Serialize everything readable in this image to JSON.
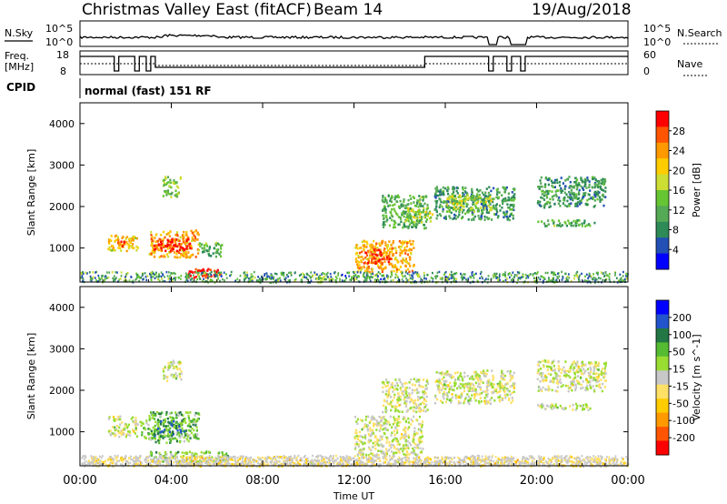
{
  "header": {
    "title": "Christmas Valley East (fitACF)",
    "beam": "Beam 14",
    "date": "19/Aug/2018"
  },
  "status_panel": {
    "nsky_label": "N.Sky",
    "nsearch_label": "N.Search",
    "nsky_ticks": [
      "10^5",
      "10^0"
    ],
    "nsearch_ticks": [
      "10^5",
      "10^0"
    ],
    "freq_label": [
      "Freq.",
      "[MHz]"
    ],
    "freq_ticks": [
      "18",
      "8"
    ],
    "nave_label": "Nave",
    "nave_ticks": [
      "60",
      "0"
    ],
    "cpid_label": "CPID",
    "cpid_value": "normal (fast) 151 RF"
  },
  "chart_data": [
    {
      "type": "heatmap",
      "title": "",
      "xlabel": "",
      "ylabel": "Slant Range [km]",
      "x_ticks": [
        "00:00",
        "04:00",
        "08:00",
        "12:00",
        "16:00",
        "20:00",
        "00:00"
      ],
      "xlim_hours": [
        0,
        24
      ],
      "y_ticks": [
        1000,
        2000,
        3000,
        4000
      ],
      "ylim_km": [
        180,
        4500
      ],
      "colorbar_label": "Power [dB]",
      "colorbar_ticks": [
        "28",
        "24",
        "20",
        "16",
        "12",
        "8",
        "4"
      ],
      "colors": [
        "#0000ff",
        "#2250b4",
        "#2e8b57",
        "#55aa55",
        "#66c533",
        "#ccdd33",
        "#ffcc00",
        "#ff9900",
        "#ff5500",
        "#ff0000"
      ],
      "regions": [
        {
          "t0": 1.2,
          "t1": 2.5,
          "r0": 950,
          "r1": 1350,
          "value": 20
        },
        {
          "t0": 1.6,
          "t1": 2.1,
          "r0": 1050,
          "r1": 1250,
          "value": 26
        },
        {
          "t0": 3.0,
          "t1": 5.2,
          "r0": 800,
          "r1": 1450,
          "value": 22
        },
        {
          "t0": 3.2,
          "t1": 4.8,
          "r0": 950,
          "r1": 1250,
          "value": 28
        },
        {
          "t0": 5.2,
          "t1": 6.2,
          "r0": 820,
          "r1": 1150,
          "value": 12
        },
        {
          "t0": 3.6,
          "t1": 4.4,
          "r0": 2250,
          "r1": 2750,
          "value": 14
        },
        {
          "t0": 4.5,
          "t1": 6.2,
          "r0": 300,
          "r1": 520,
          "value": 29
        },
        {
          "t0": 12.0,
          "t1": 14.6,
          "r0": 450,
          "r1": 1200,
          "value": 22
        },
        {
          "t0": 12.4,
          "t1": 13.6,
          "r0": 650,
          "r1": 1000,
          "value": 28
        },
        {
          "t0": 13.2,
          "t1": 15.2,
          "r0": 1500,
          "r1": 2300,
          "value": 12
        },
        {
          "t0": 14.2,
          "t1": 15.4,
          "r0": 1650,
          "r1": 2000,
          "value": 16
        },
        {
          "t0": 15.5,
          "t1": 19.0,
          "r0": 1700,
          "r1": 2500,
          "value": 10
        },
        {
          "t0": 16.0,
          "t1": 18.0,
          "r0": 1900,
          "r1": 2300,
          "value": 16
        },
        {
          "t0": 20.0,
          "t1": 23.0,
          "r0": 2000,
          "r1": 2750,
          "value": 10
        },
        {
          "t0": 20.0,
          "t1": 22.5,
          "r0": 1550,
          "r1": 1700,
          "value": 12
        }
      ]
    },
    {
      "type": "heatmap",
      "title": "",
      "xlabel": "Time UT",
      "ylabel": "Slant Range [km]",
      "x_ticks": [
        "00:00",
        "04:00",
        "08:00",
        "12:00",
        "16:00",
        "20:00",
        "00:00"
      ],
      "xlim_hours": [
        0,
        24
      ],
      "y_ticks": [
        1000,
        2000,
        3000,
        4000
      ],
      "ylim_km": [
        180,
        4500
      ],
      "colorbar_label": "Velocity [m s^-1]",
      "colorbar_ticks": [
        "200",
        "100",
        "50",
        "15",
        "-15",
        "-50",
        "-100",
        "-200"
      ],
      "colors": [
        "#ff0000",
        "#ff5500",
        "#ff9900",
        "#ffcc00",
        "#ffe066",
        "#c8c8c8",
        "#99dd33",
        "#55bb33",
        "#227744",
        "#2255cc",
        "#0000ff"
      ],
      "regions": [
        {
          "t0": 1.2,
          "t1": 2.5,
          "r0": 900,
          "r1": 1400,
          "value": 0
        },
        {
          "t0": 2.6,
          "t1": 3.0,
          "r0": 850,
          "r1": 1300,
          "value": 60
        },
        {
          "t0": 3.0,
          "t1": 5.2,
          "r0": 750,
          "r1": 1500,
          "value": 70
        },
        {
          "t0": 3.2,
          "t1": 4.6,
          "r0": 900,
          "r1": 1300,
          "value": 120
        },
        {
          "t0": 3.6,
          "t1": 4.4,
          "r0": 2250,
          "r1": 2750,
          "value": 0
        },
        {
          "t0": 3.0,
          "t1": 6.5,
          "r0": 300,
          "r1": 550,
          "value": 60
        },
        {
          "t0": 0.2,
          "t1": 24.0,
          "r0": 190,
          "r1": 420,
          "value": -45
        },
        {
          "t0": 12.0,
          "t1": 15.0,
          "r0": 450,
          "r1": 1400,
          "value": 0
        },
        {
          "t0": 13.2,
          "t1": 15.2,
          "r0": 1500,
          "r1": 2300,
          "value": 0
        },
        {
          "t0": 15.5,
          "t1": 19.0,
          "r0": 1700,
          "r1": 2500,
          "value": 0
        },
        {
          "t0": 20.0,
          "t1": 23.0,
          "r0": 2000,
          "r1": 2750,
          "value": 0
        },
        {
          "t0": 20.0,
          "t1": 22.5,
          "r0": 1550,
          "r1": 1700,
          "value": 0
        }
      ]
    }
  ]
}
